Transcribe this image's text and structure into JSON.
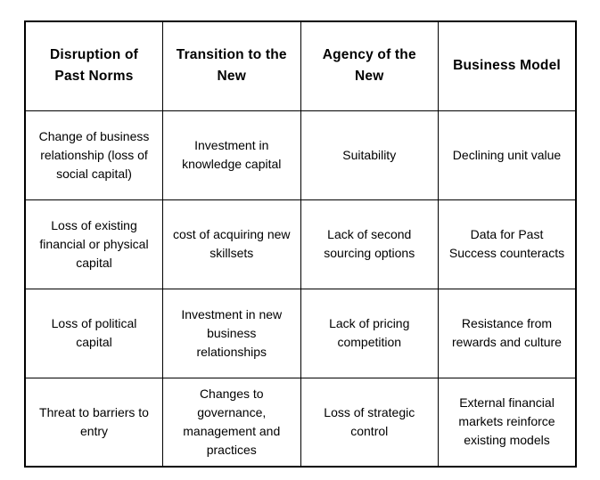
{
  "table": {
    "headers": [
      "Disruption of Past Norms",
      "Transition to the New",
      "Agency of the New",
      "Business Model"
    ],
    "rows": [
      [
        "Change of business relationship (loss of social capital)",
        "Investment in knowledge capital",
        "Suitability",
        "Declining unit value"
      ],
      [
        "Loss of existing financial or physical capital",
        "cost of acquiring new skillsets",
        "Lack of second sourcing options",
        "Data for Past Success counteracts"
      ],
      [
        "Loss of political capital",
        "Investment in new business relationships",
        "Lack of pricing competition",
        "Resistance from rewards and culture"
      ],
      [
        "Threat to barriers to entry",
        "Changes to governance, management and practices",
        "Loss of strategic control",
        "External financial markets reinforce existing models"
      ]
    ],
    "colors": {
      "border": "#000000",
      "text": "#000000",
      "background": "#ffffff"
    }
  }
}
